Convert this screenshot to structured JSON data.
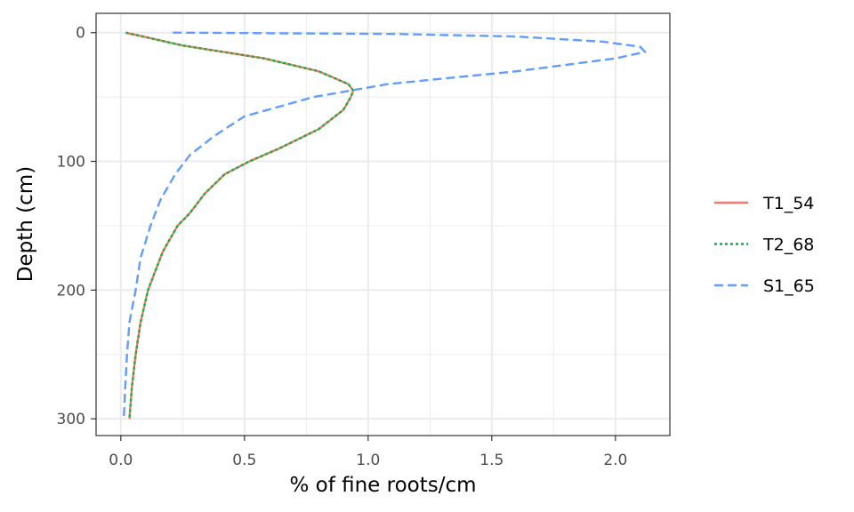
{
  "chart_data": {
    "type": "line",
    "xlabel": "% of fine roots/cm",
    "ylabel": "Depth (cm)",
    "xlim": [
      -0.1,
      2.22
    ],
    "ylim": [
      313,
      -15
    ],
    "y_reversed": true,
    "x_ticks": [
      0.0,
      0.5,
      1.0,
      1.5,
      2.0
    ],
    "x_tick_labels": [
      "0.0",
      "0.5",
      "1.0",
      "1.5",
      "2.0"
    ],
    "y_ticks": [
      0,
      100,
      200,
      300
    ],
    "y_tick_labels": [
      "0",
      "100",
      "200",
      "300"
    ],
    "grid": true,
    "legend_position": "right",
    "series": [
      {
        "name": "T1_54",
        "color": "#F8766D",
        "dash": "solid",
        "points": [
          [
            0.02,
            0
          ],
          [
            0.25,
            10
          ],
          [
            0.58,
            20
          ],
          [
            0.8,
            30
          ],
          [
            0.92,
            40
          ],
          [
            0.94,
            45
          ],
          [
            0.93,
            50
          ],
          [
            0.9,
            60
          ],
          [
            0.8,
            75
          ],
          [
            0.64,
            90
          ],
          [
            0.52,
            100
          ],
          [
            0.42,
            110
          ],
          [
            0.34,
            125
          ],
          [
            0.28,
            140
          ],
          [
            0.23,
            150
          ],
          [
            0.17,
            170
          ],
          [
            0.14,
            185
          ],
          [
            0.11,
            200
          ],
          [
            0.08,
            225
          ],
          [
            0.06,
            250
          ],
          [
            0.045,
            275
          ],
          [
            0.035,
            300
          ]
        ]
      },
      {
        "name": "T2_68",
        "color": "#00BA38",
        "dash": "dotted",
        "points": [
          [
            0.02,
            0
          ],
          [
            0.25,
            10
          ],
          [
            0.58,
            20
          ],
          [
            0.8,
            30
          ],
          [
            0.92,
            40
          ],
          [
            0.94,
            45
          ],
          [
            0.93,
            50
          ],
          [
            0.9,
            60
          ],
          [
            0.8,
            75
          ],
          [
            0.64,
            90
          ],
          [
            0.52,
            100
          ],
          [
            0.42,
            110
          ],
          [
            0.34,
            125
          ],
          [
            0.28,
            140
          ],
          [
            0.23,
            150
          ],
          [
            0.17,
            170
          ],
          [
            0.14,
            185
          ],
          [
            0.11,
            200
          ],
          [
            0.08,
            225
          ],
          [
            0.06,
            250
          ],
          [
            0.045,
            275
          ],
          [
            0.035,
            300
          ]
        ]
      },
      {
        "name": "S1_65",
        "color": "#619CFF",
        "dash": "dashed",
        "points": [
          [
            0.21,
            0
          ],
          [
            1.1,
            1
          ],
          [
            1.6,
            3
          ],
          [
            1.95,
            7
          ],
          [
            2.1,
            11
          ],
          [
            2.12,
            15
          ],
          [
            2.0,
            20
          ],
          [
            1.6,
            30
          ],
          [
            1.08,
            40
          ],
          [
            0.78,
            50
          ],
          [
            0.5,
            65
          ],
          [
            0.38,
            80
          ],
          [
            0.28,
            95
          ],
          [
            0.22,
            110
          ],
          [
            0.16,
            130
          ],
          [
            0.12,
            150
          ],
          [
            0.08,
            175
          ],
          [
            0.06,
            200
          ],
          [
            0.035,
            225
          ],
          [
            0.025,
            250
          ],
          [
            0.018,
            275
          ],
          [
            0.012,
            300
          ]
        ]
      }
    ]
  }
}
